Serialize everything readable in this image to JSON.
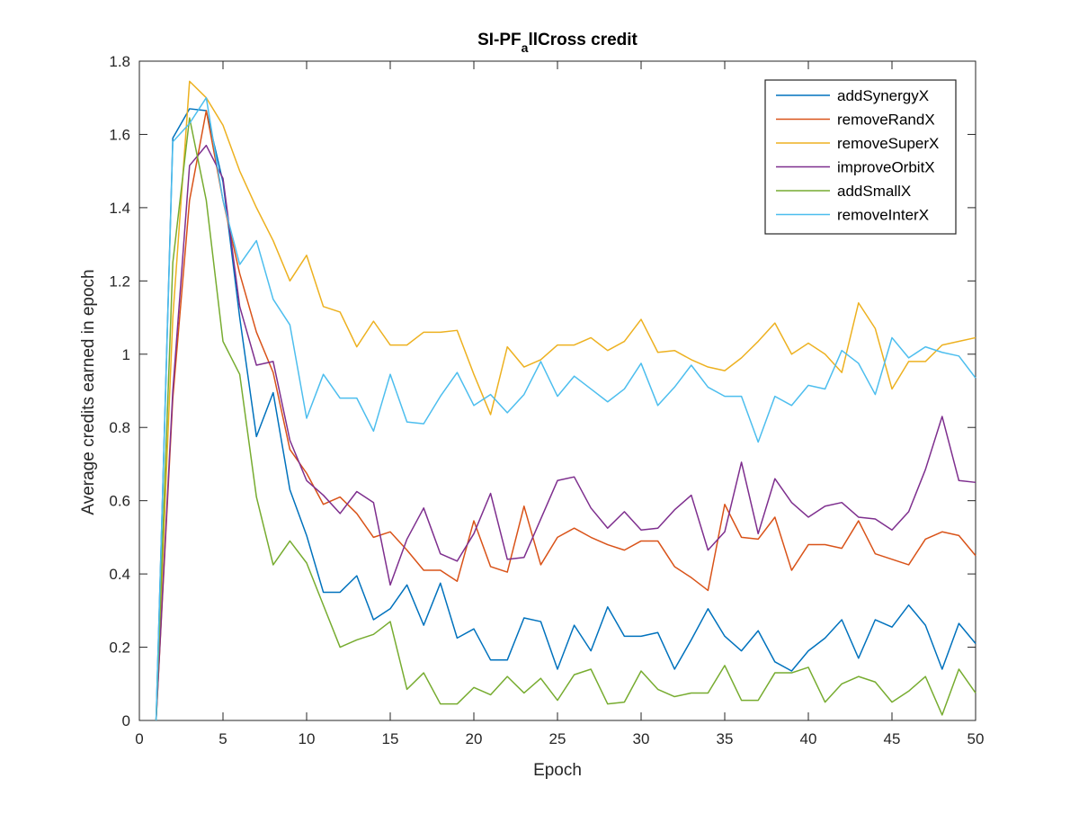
{
  "chart_data": {
    "type": "line",
    "title_main": "SI-PF",
    "title_sub": "a",
    "title_rest": "llCross credit",
    "xlabel": "Epoch",
    "ylabel": "Average credits earned in epoch",
    "xlim": [
      0,
      50
    ],
    "ylim": [
      0,
      1.8
    ],
    "xticks": [
      "0",
      "5",
      "10",
      "15",
      "20",
      "25",
      "30",
      "35",
      "40",
      "45",
      "50"
    ],
    "yticks": [
      "0",
      "0.2",
      "0.4",
      "0.6",
      "0.8",
      "1",
      "1.2",
      "1.4",
      "1.6",
      "1.8"
    ],
    "grid": false,
    "legend_position": "top-right",
    "x": [
      1,
      2,
      3,
      4,
      5,
      6,
      7,
      8,
      9,
      10,
      11,
      12,
      13,
      14,
      15,
      16,
      17,
      18,
      19,
      20,
      21,
      22,
      23,
      24,
      25,
      26,
      27,
      28,
      29,
      30,
      31,
      32,
      33,
      34,
      35,
      36,
      37,
      38,
      39,
      40,
      41,
      42,
      43,
      44,
      45,
      46,
      47,
      48,
      49,
      50
    ],
    "series": [
      {
        "name": "addSynergyX",
        "color": "#0072BD",
        "values": [
          0,
          1.59,
          1.67,
          1.665,
          1.47,
          1.1,
          0.775,
          0.895,
          0.63,
          0.505,
          0.35,
          0.35,
          0.395,
          0.275,
          0.305,
          0.37,
          0.26,
          0.375,
          0.225,
          0.25,
          0.165,
          0.165,
          0.28,
          0.27,
          0.14,
          0.26,
          0.19,
          0.31,
          0.23,
          0.23,
          0.24,
          0.14,
          0.22,
          0.305,
          0.23,
          0.19,
          0.245,
          0.16,
          0.135,
          0.19,
          0.225,
          0.275,
          0.17,
          0.275,
          0.255,
          0.315,
          0.26,
          0.14,
          0.265,
          0.21
        ]
      },
      {
        "name": "removeRandX",
        "color": "#D95319",
        "values": [
          0,
          0.88,
          1.42,
          1.665,
          1.42,
          1.22,
          1.06,
          0.95,
          0.74,
          0.675,
          0.59,
          0.61,
          0.565,
          0.5,
          0.515,
          0.465,
          0.41,
          0.41,
          0.38,
          0.545,
          0.42,
          0.405,
          0.585,
          0.425,
          0.5,
          0.525,
          0.5,
          0.48,
          0.465,
          0.49,
          0.49,
          0.42,
          0.39,
          0.355,
          0.59,
          0.5,
          0.495,
          0.555,
          0.41,
          0.48,
          0.48,
          0.47,
          0.545,
          0.455,
          0.44,
          0.425,
          0.495,
          0.515,
          0.505,
          0.45
        ]
      },
      {
        "name": "removeSuperX",
        "color": "#EDB120",
        "values": [
          0,
          1.1,
          1.745,
          1.7,
          1.625,
          1.5,
          1.4,
          1.31,
          1.2,
          1.27,
          1.13,
          1.115,
          1.02,
          1.09,
          1.025,
          1.025,
          1.06,
          1.06,
          1.065,
          0.945,
          0.835,
          1.02,
          0.965,
          0.985,
          1.025,
          1.025,
          1.045,
          1.01,
          1.035,
          1.095,
          1.005,
          1.01,
          0.985,
          0.965,
          0.955,
          0.99,
          1.035,
          1.085,
          1.0,
          1.03,
          1.0,
          0.95,
          1.14,
          1.07,
          0.905,
          0.98,
          0.98,
          1.025,
          1.035,
          1.045
        ]
      },
      {
        "name": "improveOrbitX",
        "color": "#7E2F8E",
        "values": [
          0,
          0.9,
          1.515,
          1.57,
          1.48,
          1.13,
          0.97,
          0.98,
          0.765,
          0.655,
          0.615,
          0.565,
          0.625,
          0.595,
          0.37,
          0.495,
          0.58,
          0.455,
          0.435,
          0.51,
          0.62,
          0.44,
          0.445,
          0.55,
          0.655,
          0.665,
          0.58,
          0.525,
          0.57,
          0.52,
          0.525,
          0.575,
          0.615,
          0.465,
          0.515,
          0.705,
          0.51,
          0.66,
          0.595,
          0.555,
          0.585,
          0.595,
          0.555,
          0.55,
          0.52,
          0.57,
          0.685,
          0.83,
          0.655,
          0.65
        ]
      },
      {
        "name": "addSmallX",
        "color": "#77AC30",
        "values": [
          0,
          1.25,
          1.645,
          1.42,
          1.035,
          0.945,
          0.61,
          0.425,
          0.49,
          0.43,
          0.315,
          0.2,
          0.22,
          0.235,
          0.27,
          0.085,
          0.13,
          0.045,
          0.045,
          0.09,
          0.07,
          0.12,
          0.075,
          0.115,
          0.055,
          0.125,
          0.14,
          0.045,
          0.05,
          0.135,
          0.085,
          0.065,
          0.075,
          0.075,
          0.15,
          0.055,
          0.055,
          0.13,
          0.13,
          0.145,
          0.05,
          0.1,
          0.12,
          0.105,
          0.05,
          0.08,
          0.12,
          0.015,
          0.14,
          0.075
        ]
      },
      {
        "name": "removeInterX",
        "color": "#4DBEEE",
        "values": [
          0,
          1.58,
          1.63,
          1.7,
          1.42,
          1.245,
          1.31,
          1.15,
          1.08,
          0.825,
          0.945,
          0.88,
          0.88,
          0.79,
          0.945,
          0.815,
          0.81,
          0.885,
          0.95,
          0.86,
          0.89,
          0.84,
          0.89,
          0.98,
          0.885,
          0.94,
          0.905,
          0.87,
          0.905,
          0.975,
          0.86,
          0.91,
          0.97,
          0.91,
          0.885,
          0.885,
          0.76,
          0.885,
          0.86,
          0.915,
          0.905,
          1.01,
          0.975,
          0.89,
          1.045,
          0.99,
          1.02,
          1.005,
          0.995,
          0.935
        ]
      }
    ]
  }
}
